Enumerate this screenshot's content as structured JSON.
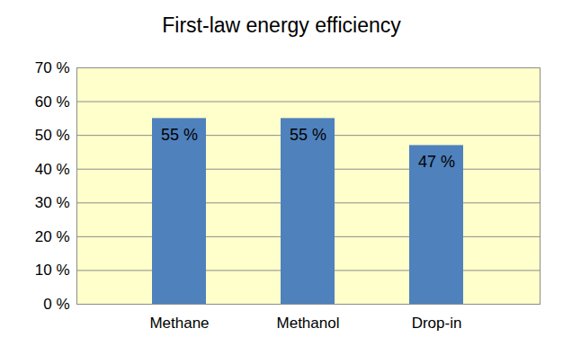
{
  "chart_data": {
    "type": "bar",
    "title": "First-law energy efficiency",
    "categories": [
      "Methane",
      "Methanol",
      "Drop-in"
    ],
    "values": [
      55,
      55,
      47
    ],
    "value_labels": [
      "55 %",
      "55 %",
      "47 %"
    ],
    "data_labels": true,
    "color": "#4f81bd",
    "ylim": [
      0,
      70
    ],
    "yticks": [
      {
        "value": 0,
        "label": "0 %"
      },
      {
        "value": 10,
        "label": "10 %"
      },
      {
        "value": 20,
        "label": "20 %"
      },
      {
        "value": 30,
        "label": "30 %"
      },
      {
        "value": 40,
        "label": "40 %"
      },
      {
        "value": 50,
        "label": "50 %"
      },
      {
        "value": 60,
        "label": "60 %"
      },
      {
        "value": 70,
        "label": "70 %"
      }
    ],
    "grid": true
  }
}
